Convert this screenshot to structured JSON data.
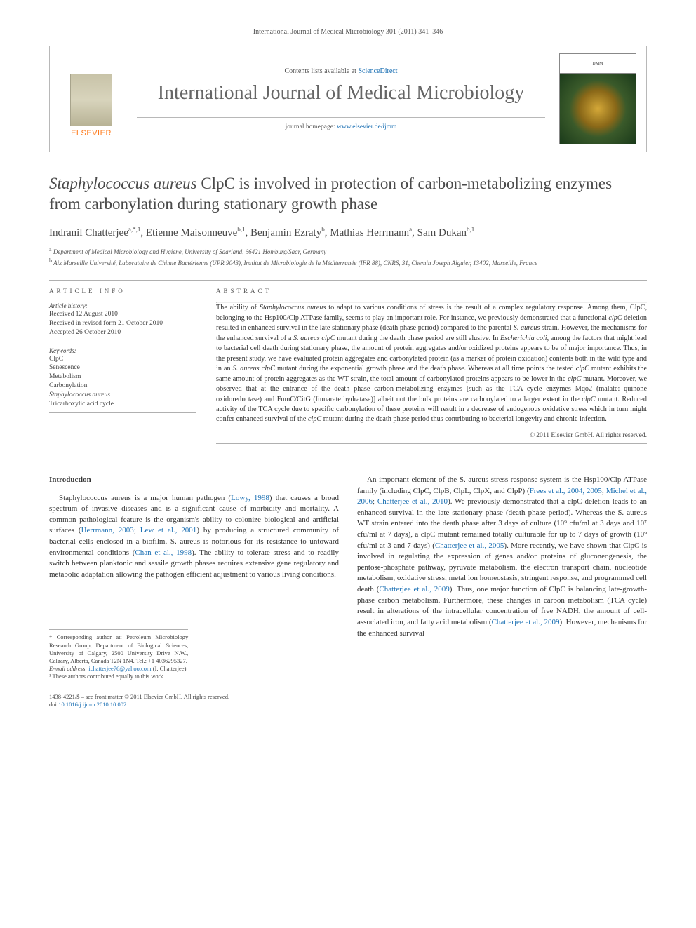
{
  "header": {
    "citation": "International Journal of Medical Microbiology 301 (2011) 341–346"
  },
  "masthead": {
    "publisher_name": "ELSEVIER",
    "contents_prefix": "Contents lists available at ",
    "contents_link": "ScienceDirect",
    "journal_title": "International Journal of Medical Microbiology",
    "homepage_prefix": "journal homepage: ",
    "homepage_url": "www.elsevier.de/ijmm",
    "cover_label": "IJMM"
  },
  "article": {
    "title_prefix_italic": "Staphylococcus aureus",
    "title_rest": " ClpC is involved in protection of carbon-metabolizing enzymes from carbonylation during stationary growth phase",
    "authors_html": "Indranil Chatterjee<sup>a,*,1</sup>, Etienne Maisonneuve<sup>b,1</sup>, Benjamin Ezraty<sup>b</sup>, Mathias Herrmann<sup>a</sup>, Sam Dukan<sup>b,1</sup>",
    "affil_a": "Department of Medical Microbiology and Hygiene, University of Saarland, 66421 Homburg/Saar, Germany",
    "affil_b": "Aix Marseille Université, Laboratoire de Chimie Bactérienne (UPR 9043), Institut de Microbiologie de la Méditerranée (IFR 88), CNRS, 31, Chemin Joseph Aiguier, 13402, Marseille, France"
  },
  "info": {
    "article_info_label": "article info",
    "abstract_label": "abstract",
    "history_label": "Article history:",
    "received": "Received 12 August 2010",
    "revised": "Received in revised form 21 October 2010",
    "accepted": "Accepted 26 October 2010",
    "keywords_label": "Keywords:",
    "keywords": [
      "ClpC",
      "Senescence",
      "Metabolism",
      "Carbonylation",
      "Staphylococcus aureus",
      "Tricarboxylic acid cycle"
    ]
  },
  "abstract": {
    "text": "The ability of Staphylococcus aureus to adapt to various conditions of stress is the result of a complex regulatory response. Among them, ClpC, belonging to the Hsp100/Clp ATPase family, seems to play an important role. For instance, we previously demonstrated that a functional clpC deletion resulted in enhanced survival in the late stationary phase (death phase period) compared to the parental S. aureus strain. However, the mechanisms for the enhanced survival of a S. aureus clpC mutant during the death phase period are still elusive. In Escherichia coli, among the factors that might lead to bacterial cell death during stationary phase, the amount of protein aggregates and/or oxidized proteins appears to be of major importance. Thus, in the present study, we have evaluated protein aggregates and carbonylated protein (as a marker of protein oxidation) contents both in the wild type and in an S. aureus clpC mutant during the exponential growth phase and the death phase. Whereas at all time points the tested clpC mutant exhibits the same amount of protein aggregates as the WT strain, the total amount of carbonylated proteins appears to be lower in the clpC mutant. Moreover, we observed that at the entrance of the death phase carbon-metabolizing enzymes [such as the TCA cycle enzymes Mqo2 (malate: quinone oxidoreductase) and FumC/CitG (fumarate hydratase)] albeit not the bulk proteins are carbonylated to a larger extent in the clpC mutant. Reduced activity of the TCA cycle due to specific carbonylation of these proteins will result in a decrease of endogenous oxidative stress which in turn might confer enhanced survival of the clpC mutant during the death phase period thus contributing to bacterial longevity and chronic infection.",
    "copyright": "© 2011 Elsevier GmbH. All rights reserved."
  },
  "body": {
    "intro_heading": "Introduction",
    "col1_p1": "Staphylococcus aureus is a major human pathogen (Lowy, 1998) that causes a broad spectrum of invasive diseases and is a significant cause of morbidity and mortality. A common pathological feature is the organism's ability to colonize biological and artificial surfaces (Herrmann, 2003; Lew et al., 2001) by producing a structured community of bacterial cells enclosed in a biofilm. S. aureus is notorious for its resistance to untoward environmental conditions (Chan et al., 1998). The ability to tolerate stress and to readily switch between planktonic and sessile growth phases requires extensive gene regulatory and metabolic adaptation allowing the pathogen efficient adjustment to various living conditions.",
    "col2_p1": "An important element of the S. aureus stress response system is the Hsp100/Clp ATPase family (including ClpC, ClpB, ClpL, ClpX, and ClpP) (Frees et al., 2004, 2005; Michel et al., 2006; Chatterjee et al., 2010). We previously demonstrated that a clpC deletion leads to an enhanced survival in the late stationary phase (death phase period). Whereas the S. aureus WT strain entered into the death phase after 3 days of culture (10⁹ cfu/ml at 3 days and 10⁷ cfu/ml at 7 days), a clpC mutant remained totally culturable for up to 7 days of growth (10⁹ cfu/ml at 3 and 7 days) (Chatterjee et al., 2005). More recently, we have shown that ClpC is involved in regulating the expression of genes and/or proteins of gluconeogenesis, the pentose-phosphate pathway, pyruvate metabolism, the electron transport chain, nucleotide metabolism, oxidative stress, metal ion homeostasis, stringent response, and programmed cell death (Chatterjee et al., 2009). Thus, one major function of ClpC is balancing late-growth-phase carbon metabolism. Furthermore, these changes in carbon metabolism (TCA cycle) result in alterations of the intracellular concentration of free NADH, the amount of cell-associated iron, and fatty acid metabolism (Chatterjee et al., 2009). However, mechanisms for the enhanced survival"
  },
  "footnotes": {
    "corresponding": "* Corresponding author at: Petroleum Microbiology Research Group, Department of Biological Sciences, University of Calgary, 2500 University Drive N.W., Calgary, Alberta, Canada T2N 1N4. Tel.: +1 4036295327.",
    "email_label": "E-mail address: ",
    "email": "ichatterjee76@yahoo.com",
    "email_suffix": " (I. Chatterjee).",
    "equal": "¹ These authors contributed equally to this work."
  },
  "footer": {
    "issn": "1438-4221/$ – see front matter © 2011 Elsevier GmbH. All rights reserved.",
    "doi_label": "doi:",
    "doi": "10.1016/j.ijmm.2010.10.002"
  },
  "colors": {
    "link": "#1a6fb3",
    "publisher_orange": "#ff7a1a",
    "text": "#3a3a3a",
    "border": "#b0b0b0"
  }
}
